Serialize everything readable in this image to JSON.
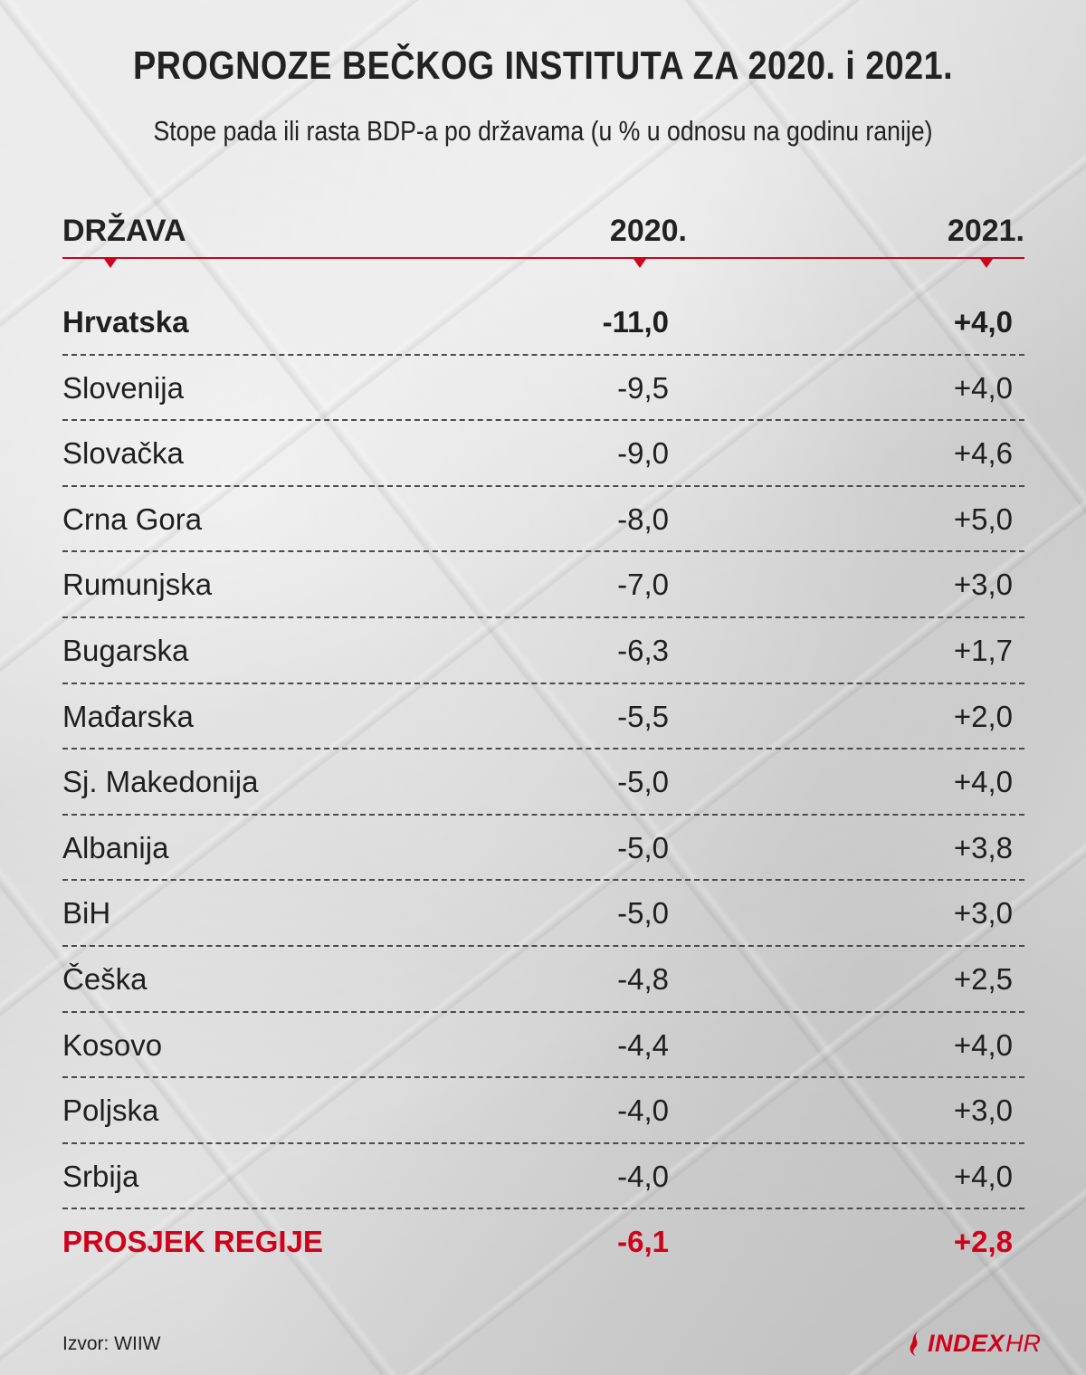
{
  "title": "PROGNOZE BEČKOG INSTITUTA ZA 2020. i 2021.",
  "subtitle": "Stope pada ili rasta BDP-a po državama (u % u odnosu na godinu ranije)",
  "source": "Izvor: WIIW",
  "logo": {
    "index": "INDEX",
    "hr": "HR"
  },
  "colors": {
    "accent": "#d0021b",
    "text": "#1c1c1c"
  },
  "chart_data": {
    "type": "table",
    "columns": [
      "DRŽAVA",
      "2020.",
      "2021."
    ],
    "rows": [
      {
        "country": "Hrvatska",
        "v2020": "-11,0",
        "v2021": "+4,0",
        "emphasis": "bold"
      },
      {
        "country": "Slovenija",
        "v2020": "-9,5",
        "v2021": "+4,0"
      },
      {
        "country": "Slovačka",
        "v2020": "-9,0",
        "v2021": "+4,6"
      },
      {
        "country": "Crna Gora",
        "v2020": "-8,0",
        "v2021": "+5,0"
      },
      {
        "country": "Rumunjska",
        "v2020": "-7,0",
        "v2021": "+3,0"
      },
      {
        "country": "Bugarska",
        "v2020": "-6,3",
        "v2021": "+1,7"
      },
      {
        "country": "Mađarska",
        "v2020": "-5,5",
        "v2021": "+2,0"
      },
      {
        "country": "Sj. Makedonija",
        "v2020": "-5,0",
        "v2021": "+4,0"
      },
      {
        "country": "Albanija",
        "v2020": "-5,0",
        "v2021": "+3,8"
      },
      {
        "country": "BiH",
        "v2020": "-5,0",
        "v2021": "+3,0"
      },
      {
        "country": "Češka",
        "v2020": "-4,8",
        "v2021": "+2,5"
      },
      {
        "country": "Kosovo",
        "v2020": "-4,4",
        "v2021": "+4,0"
      },
      {
        "country": "Poljska",
        "v2020": "-4,0",
        "v2021": "+3,0"
      },
      {
        "country": "Srbija",
        "v2020": "-4,0",
        "v2021": "+4,0"
      },
      {
        "country": "PROSJEK REGIJE",
        "v2020": "-6,1",
        "v2021": "+2,8",
        "emphasis": "average"
      }
    ]
  }
}
